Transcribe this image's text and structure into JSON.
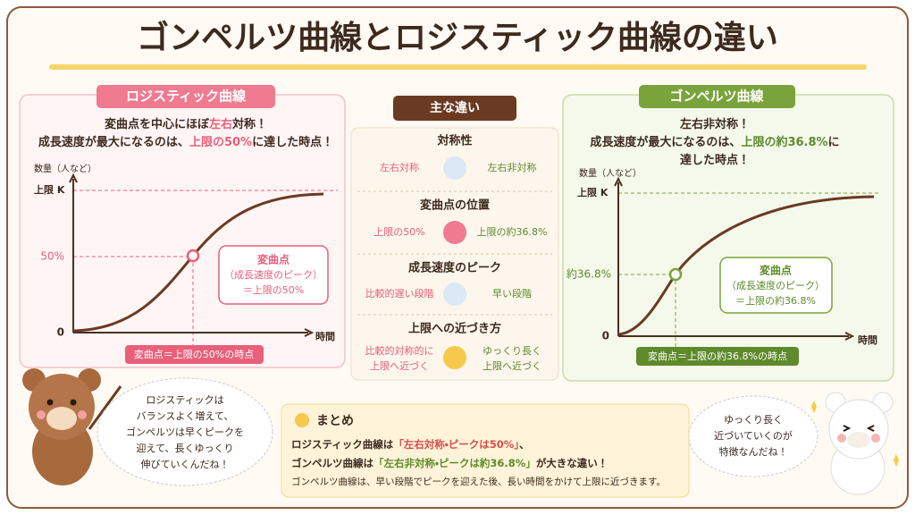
{
  "header": {
    "title": "ゴンペルツ曲線とロジスティック曲線の違い"
  },
  "logistic": {
    "heading": "ロジスティック曲線",
    "description": [
      [
        "変曲点を中心にほぼ",
        "左右",
        "対称！"
      ],
      [
        "成長速度が最大になるのは、",
        "上限の50%",
        "に達した時点！"
      ]
    ],
    "chart": {
      "y_label": "数量（人など）",
      "top_label": "上限 K",
      "mid_label": "50%",
      "zero_label": "0",
      "x_label": "時間"
    },
    "callout": [
      "変曲点",
      "（成長速度のピーク）",
      "＝上限の50%"
    ],
    "badge": "変曲点＝上限の50%の時点"
  },
  "differences": {
    "heading": "主な違い",
    "items": [
      {
        "title": "対称性",
        "left": [
          "左右対称"
        ],
        "right": [
          "左右非対称"
        ]
      },
      {
        "title": "変曲点の位置",
        "left": [
          "上限の50%"
        ],
        "right": [
          "上限の約36.8%"
        ]
      },
      {
        "title": "成長速度のピーク",
        "left": [
          "比較的遅い段階"
        ],
        "right": [
          "早い段階"
        ]
      },
      {
        "title": "上限への近づき方",
        "left": [
          "比較的対称的に",
          "上限へ近づく"
        ],
        "right": [
          "ゆっくり長く",
          "上限へ近づく"
        ]
      }
    ]
  },
  "gompertz": {
    "heading": "ゴンペルツ曲線",
    "description": [
      [
        "左右非対称！"
      ],
      [
        "成長速度が最大になるのは、",
        "上限の約36.8%",
        "に"
      ],
      [
        "達した時点！"
      ]
    ],
    "chart": {
      "y_label": "数量（人など）",
      "top_label": "上限 K",
      "mid_label": "約36.8%",
      "zero_label": "0",
      "x_label": "時間"
    },
    "callout": [
      "変曲点",
      "（成長速度のピーク）",
      "＝上限の約36.8%"
    ],
    "badge": "変曲点＝上限の約36.8%の時点"
  },
  "left_speech": [
    "ロジスティックは",
    "バランスよく増えて、",
    "ゴンペルツは早くピークを",
    "迎えて、長くゆっくり",
    "伸びていくんだね！"
  ],
  "summary": {
    "title": "まとめ",
    "lines": [
      [
        "ロジスティック曲線は",
        "「左右対称・ピークは50%」",
        "、"
      ],
      [
        "ゴンペルツ曲線は",
        "「左右非対称・ピークは約36.8%」",
        "が大きな違い！"
      ],
      [
        "ゴンペルツ曲線は、早い段階でピークを迎えた後、長い時間をかけて上限に近づきます。"
      ]
    ]
  },
  "right_speech": [
    "ゆっくり長く",
    "近づいていくのが",
    "特徴なんだね！"
  ]
}
